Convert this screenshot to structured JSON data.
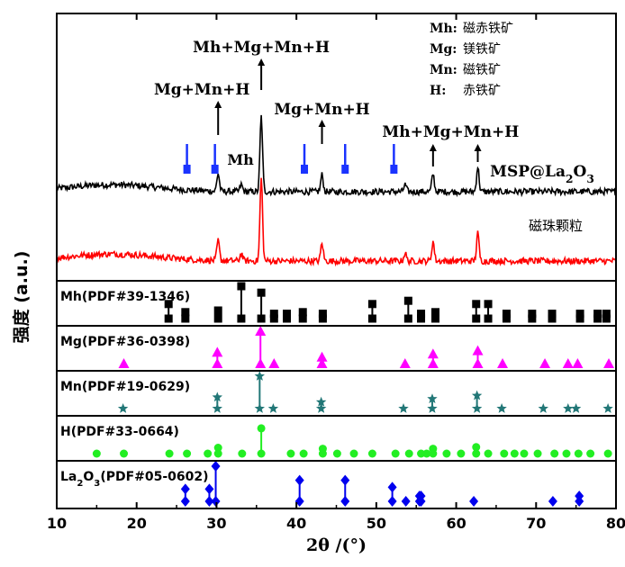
{
  "chart_data": {
    "type": "line",
    "xlabel": "2θ /(°)",
    "ylabel": "强度 (a.u.)",
    "xlim": [
      10,
      80
    ],
    "x_ticks": [
      "10",
      "20",
      "30",
      "40",
      "50",
      "60",
      "70",
      "80"
    ],
    "legend_box": [
      {
        "label": "Mh:",
        "name": "磁赤铁矿"
      },
      {
        "label": "Mg:",
        "name": "镁铁矿"
      },
      {
        "label": "Mn:",
        "name": "磁铁矿"
      },
      {
        "label": "H:",
        "name": "赤铁矿"
      }
    ],
    "annotations": {
      "main_peak": "Mh+Mg+Mn+H",
      "peak_30": "Mg+Mn+H",
      "peak_33": "Mh",
      "peak_43": "Mg+Mn+H",
      "peak_57": "Mh+Mg+Mn+H"
    },
    "series": [
      {
        "name": "MSP@La2O3",
        "name_parts": {
          "base": "MSP@La",
          "sub1": "2",
          "mid": "O",
          "sub2": "3"
        },
        "color": "#000000",
        "baseline": 0.62,
        "peaks": [
          {
            "x": 30.2,
            "h": 0.9
          },
          {
            "x": 33.1,
            "h": 0.35
          },
          {
            "x": 35.6,
            "h": 3.8
          },
          {
            "x": 43.2,
            "h": 0.85
          },
          {
            "x": 53.6,
            "h": 0.35
          },
          {
            "x": 57.1,
            "h": 0.9
          },
          {
            "x": 62.7,
            "h": 1.25
          }
        ]
      },
      {
        "name": "磁珠颗粒",
        "color": "#ff0000",
        "baseline": 0.2,
        "peaks": [
          {
            "x": 30.2,
            "h": 1.0
          },
          {
            "x": 33.1,
            "h": 0.4
          },
          {
            "x": 35.6,
            "h": 4.2
          },
          {
            "x": 43.2,
            "h": 0.9
          },
          {
            "x": 53.6,
            "h": 0.4
          },
          {
            "x": 57.1,
            "h": 1.0
          },
          {
            "x": 62.7,
            "h": 1.4
          }
        ]
      }
    ],
    "la2o3_markers_on_top_curve": [
      26.3,
      29.8,
      41.0,
      46.1,
      52.2
    ],
    "reference_patterns": [
      {
        "label": "Mh(PDF#39-1346)",
        "color": "#000000",
        "marker": "square",
        "peaks": [
          [
            24.0,
            0.45
          ],
          [
            26.1,
            0.2
          ],
          [
            30.2,
            0.25
          ],
          [
            33.1,
            1.0
          ],
          [
            35.6,
            0.8
          ],
          [
            37.2,
            0.15
          ],
          [
            38.8,
            0.15
          ],
          [
            40.8,
            0.2
          ],
          [
            43.3,
            0.15
          ],
          [
            49.5,
            0.45
          ],
          [
            54.0,
            0.55
          ],
          [
            55.6,
            0.15
          ],
          [
            57.4,
            0.2
          ],
          [
            62.5,
            0.45
          ],
          [
            64.0,
            0.45
          ],
          [
            66.3,
            0.15
          ],
          [
            69.5,
            0.15
          ],
          [
            72.0,
            0.15
          ],
          [
            75.5,
            0.15
          ],
          [
            77.7,
            0.15
          ],
          [
            78.8,
            0.15
          ]
        ]
      },
      {
        "label": "Mg(PDF#36-0398)",
        "color": "#ff00ff",
        "marker": "triangle",
        "peaks": [
          [
            18.4,
            0.1
          ],
          [
            30.1,
            0.35
          ],
          [
            35.5,
            1.0
          ],
          [
            37.2,
            0.1
          ],
          [
            43.2,
            0.2
          ],
          [
            53.6,
            0.1
          ],
          [
            57.1,
            0.3
          ],
          [
            62.7,
            0.4
          ],
          [
            65.8,
            0.1
          ],
          [
            71.1,
            0.1
          ],
          [
            74.0,
            0.1
          ],
          [
            75.2,
            0.1
          ],
          [
            79.1,
            0.1
          ]
        ]
      },
      {
        "label": "Mn(PDF#19-0629)",
        "color": "#227777",
        "marker": "star",
        "peaks": [
          [
            18.3,
            0.1
          ],
          [
            30.1,
            0.35
          ],
          [
            35.4,
            1.0
          ],
          [
            37.1,
            0.1
          ],
          [
            43.1,
            0.2
          ],
          [
            53.4,
            0.1
          ],
          [
            57.0,
            0.3
          ],
          [
            62.6,
            0.4
          ],
          [
            65.7,
            0.1
          ],
          [
            70.9,
            0.1
          ],
          [
            74.0,
            0.1
          ],
          [
            75.0,
            0.1
          ],
          [
            79.0,
            0.1
          ]
        ]
      },
      {
        "label": "H(PDF#33-0664)",
        "color": "#22ee22",
        "marker": "circle",
        "peaks": [
          [
            15.0,
            0.05
          ],
          [
            18.4,
            0.05
          ],
          [
            24.1,
            0.05
          ],
          [
            26.3,
            0.05
          ],
          [
            28.9,
            0.05
          ],
          [
            30.2,
            0.18
          ],
          [
            33.2,
            0.05
          ],
          [
            35.6,
            0.78
          ],
          [
            39.3,
            0.05
          ],
          [
            40.9,
            0.05
          ],
          [
            43.3,
            0.15
          ],
          [
            45.1,
            0.05
          ],
          [
            47.2,
            0.05
          ],
          [
            49.5,
            0.1
          ],
          [
            52.4,
            0.05
          ],
          [
            54.1,
            0.1
          ],
          [
            55.6,
            0.05
          ],
          [
            56.3,
            0.05
          ],
          [
            57.1,
            0.15
          ],
          [
            58.8,
            0.05
          ],
          [
            60.6,
            0.05
          ],
          [
            62.5,
            0.2
          ],
          [
            64.0,
            0.1
          ],
          [
            66.0,
            0.05
          ],
          [
            67.3,
            0.05
          ],
          [
            68.5,
            0.05
          ],
          [
            70.2,
            0.05
          ],
          [
            72.3,
            0.05
          ],
          [
            73.8,
            0.05
          ],
          [
            75.3,
            0.05
          ],
          [
            76.8,
            0.05
          ],
          [
            79.0,
            0.05
          ]
        ]
      },
      {
        "label_parts": {
          "base": "La",
          "sub1": "2",
          "mid": "O",
          "sub2": "3",
          "rest": "(PDF#05-0602)"
        },
        "color": "#0000ee",
        "marker": "diamond",
        "peaks": [
          [
            26.1,
            0.35
          ],
          [
            29.1,
            0.35
          ],
          [
            29.9,
            1.0
          ],
          [
            40.4,
            0.6
          ],
          [
            46.1,
            0.6
          ],
          [
            52.0,
            0.4
          ],
          [
            53.7,
            0.1
          ],
          [
            55.4,
            0.15
          ],
          [
            55.6,
            0.15
          ],
          [
            62.2,
            0.05
          ],
          [
            72.1,
            0.05
          ],
          [
            75.4,
            0.15
          ]
        ]
      }
    ]
  }
}
